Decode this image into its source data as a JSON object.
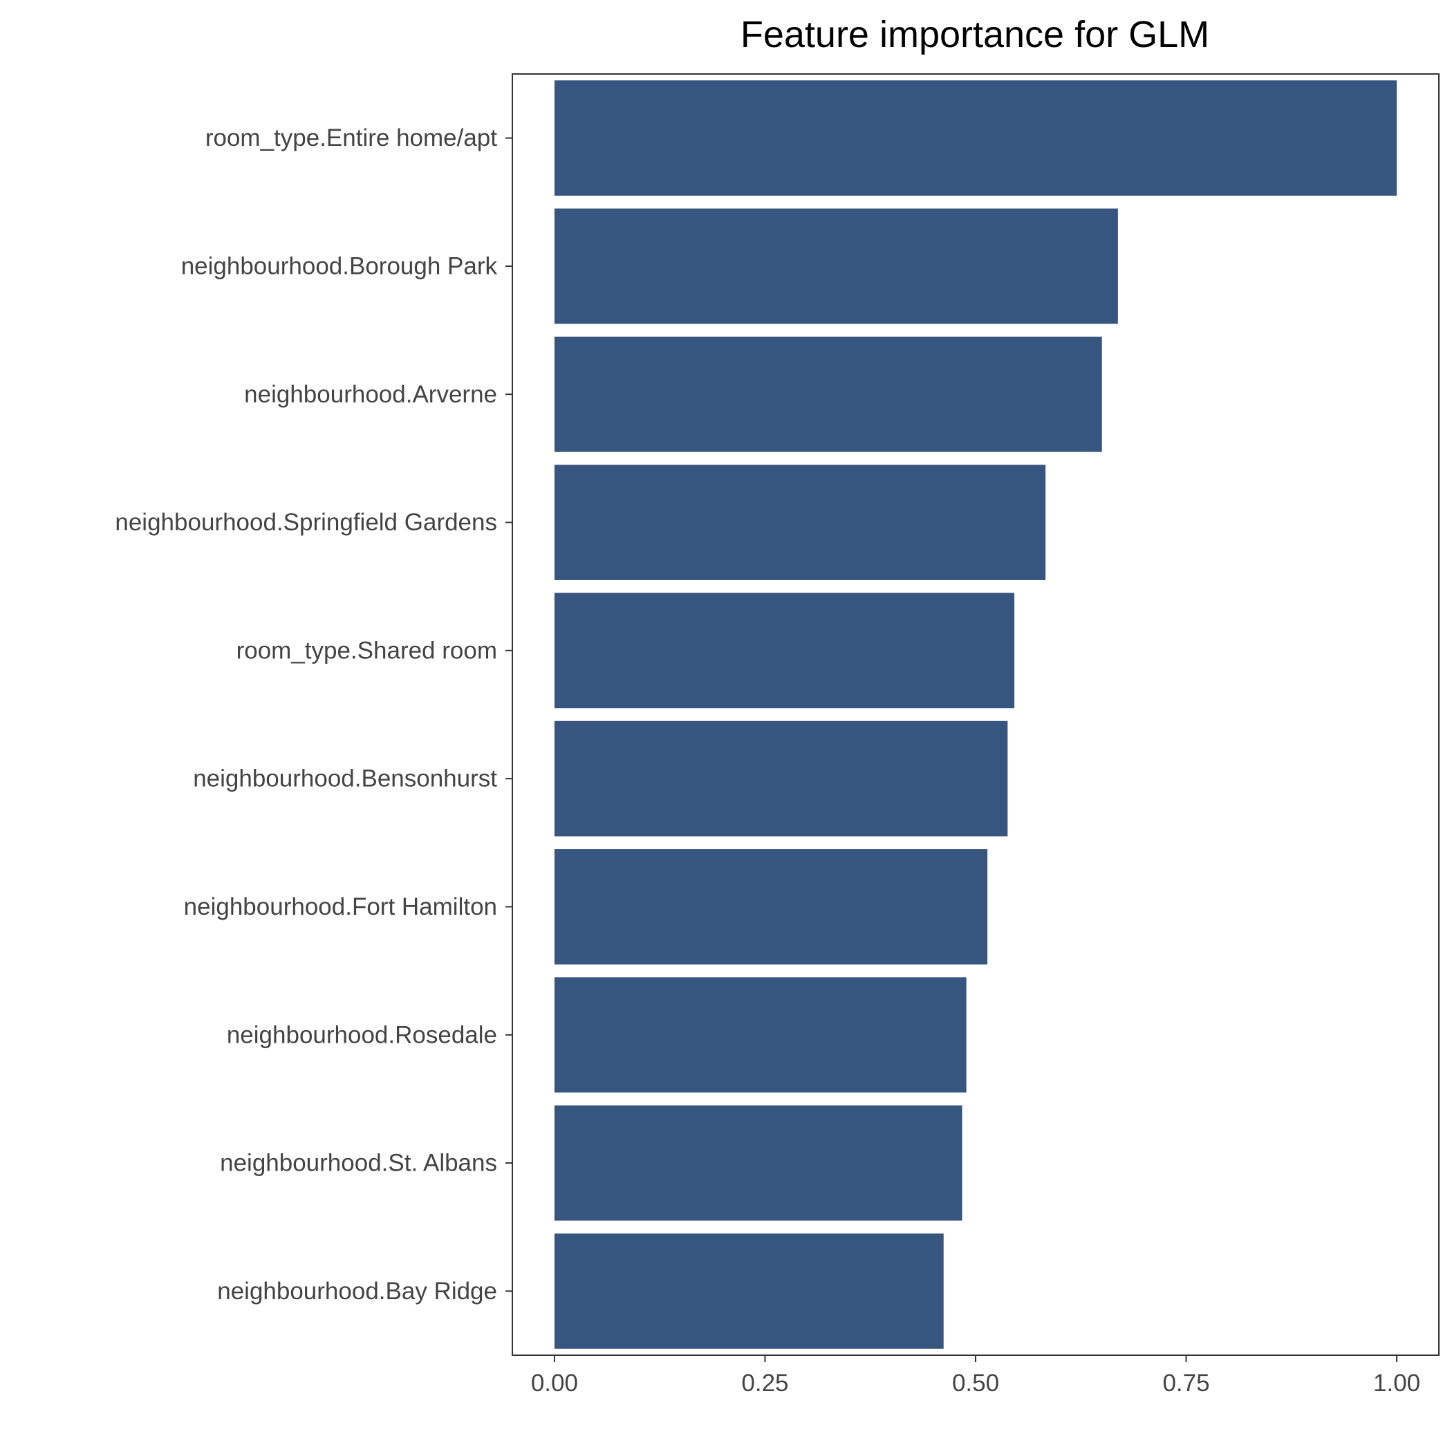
{
  "chart_data": {
    "type": "bar",
    "orientation": "horizontal",
    "title": "Feature importance for GLM",
    "xlabel": "",
    "ylabel": "",
    "xlim": [
      -0.05,
      1.05
    ],
    "x_ticks": [
      0,
      0.25,
      0.5,
      0.75,
      1.0
    ],
    "x_tick_labels": [
      "0.00",
      "0.25",
      "0.50",
      "0.75",
      "1.00"
    ],
    "grid": false,
    "legend": "none",
    "bar_color": "#36557f",
    "categories": [
      "room_type.Entire home/apt",
      "neighbourhood.Borough Park",
      "neighbourhood.Arverne",
      "neighbourhood.Springfield Gardens",
      "room_type.Shared room",
      "neighbourhood.Bensonhurst",
      "neighbourhood.Fort Hamilton",
      "neighbourhood.Rosedale",
      "neighbourhood.St. Albans",
      "neighbourhood.Bay Ridge"
    ],
    "values": [
      1.0,
      0.669,
      0.65,
      0.583,
      0.546,
      0.538,
      0.514,
      0.489,
      0.484,
      0.462
    ]
  }
}
